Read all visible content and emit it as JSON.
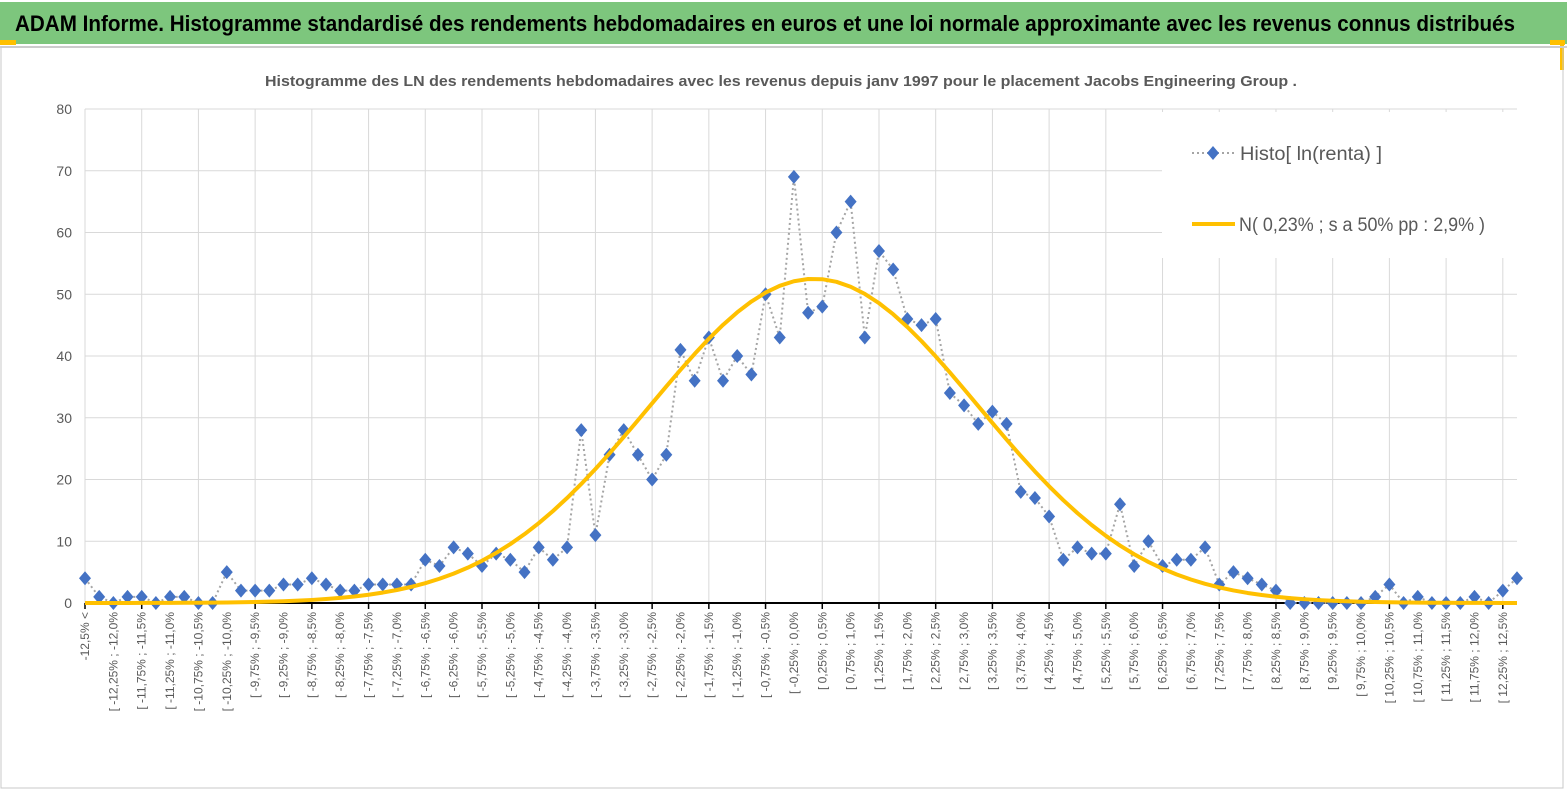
{
  "header": {
    "title": "ADAM Informe. Histogramme standardisé des rendements hebdomadaires en euros et une loi normale approximante avec les revenus connus distribués"
  },
  "colors": {
    "header_bg": "#7dc67d",
    "accent": "#ffc000",
    "series_marker": "#4472c4",
    "series_line": "#a5a5a5",
    "normal_curve": "#ffc000",
    "text": "#595959"
  },
  "chart_data": {
    "type": "line",
    "title": "Histogramme  des LN des rendements hebdomadaires avec les revenus depuis janv 1997 pour le placement Jacobs Engineering Group .",
    "xlabel": "",
    "ylabel": "",
    "ylim": [
      0,
      80
    ],
    "y_ticks": [
      "0",
      "10",
      "20",
      "30",
      "40",
      "50",
      "60",
      "70",
      "80"
    ],
    "grid": true,
    "legend_placement": "top-right",
    "n_bins": 102,
    "x_tick_labels": [
      "-12,5% <",
      "[ -12,25% ; -12,0%",
      "[ -11,75% ; -11,5%",
      "[ -11,25% ; -11,0%",
      "[ -10,75% ; -10,5%",
      "[ -10,25% ; -10,0%",
      "[ -9,75% ; -9,5%",
      "[ -9,25% ; -9,0%",
      "[ -8,75% ; -8,5%",
      "[ -8,25% ; -8,0%",
      "[ -7,75% ; -7,5%",
      "[ -7,25% ; -7,0%",
      "[ -6,75% ; -6,5%",
      "[ -6,25% ; -6,0%",
      "[ -5,75% ; -5,5%",
      "[ -5,25% ; -5,0%",
      "[ -4,75% ; -4,5%",
      "[ -4,25% ; -4,0%",
      "[ -3,75% ; -3,5%",
      "[ -3,25% ; -3,0%",
      "[ -2,75% ; -2,5%",
      "[ -2,25% ; -2,0%",
      "[ -1,75% ; -1,5%",
      "[ -1,25% ; -1,0%",
      "[ -0,75% ; -0,5%",
      "[ -0,25% ; 0,0%",
      "[ 0,25% ; 0,5%",
      "[ 0,75% ; 1,0%",
      "[ 1,25% ; 1,5%",
      "[ 1,75% ; 2,0%",
      "[ 2,25% ; 2,5%",
      "[ 2,75% ; 3,0%",
      "[ 3,25% ; 3,5%",
      "[ 3,75% ; 4,0%",
      "[ 4,25% ; 4,5%",
      "[ 4,75% ; 5,0%",
      "[ 5,25% ; 5,5%",
      "[ 5,75% ; 6,0%",
      "[ 6,25% ; 6,5%",
      "[ 6,75% ; 7,0%",
      "[ 7,25% ; 7,5%",
      "[ 7,75% ; 8,0%",
      "[ 8,25% ; 8,5%",
      "[ 8,75% ; 9,0%",
      "[ 9,25% ; 9,5%",
      "[ 9,75% ; 10,0%",
      "[ 10,25% ; 10,5%",
      "[ 10,75% ; 11,0%",
      "[ 11,25% ; 11,5%",
      "[ 11,75% ; 12,0%",
      "[ 12,25% ; 12,5%"
    ],
    "series": [
      {
        "name": "Histo[ ln(renta) ]",
        "kind": "dotted-line-diamond",
        "values": [
          4,
          1,
          0,
          1,
          1,
          0,
          1,
          1,
          0,
          0,
          5,
          2,
          2,
          2,
          3,
          3,
          4,
          3,
          2,
          2,
          3,
          3,
          3,
          3,
          7,
          6,
          9,
          8,
          6,
          8,
          7,
          5,
          9,
          7,
          9,
          28,
          11,
          24,
          28,
          24,
          20,
          24,
          41,
          36,
          43,
          36,
          40,
          37,
          50,
          43,
          69,
          47,
          48,
          60,
          65,
          43,
          57,
          54,
          46,
          45,
          46,
          34,
          32,
          29,
          31,
          29,
          18,
          17,
          14,
          7,
          9,
          8,
          8,
          16,
          6,
          10,
          6,
          7,
          7,
          9,
          3,
          5,
          4,
          3,
          2,
          0,
          0,
          0,
          0,
          0,
          0,
          1,
          3,
          0,
          1,
          0,
          0,
          0,
          1,
          0,
          2,
          4
        ]
      },
      {
        "name": "N( 0,23% ; s a 50% pp : 2,9% )",
        "kind": "normal-curve",
        "mean_pct": 0.23,
        "sd_pct": 2.9,
        "peak": 52.5,
        "bin_width_pct": 0.25,
        "first_bin_lower_pct": -12.5
      }
    ]
  }
}
